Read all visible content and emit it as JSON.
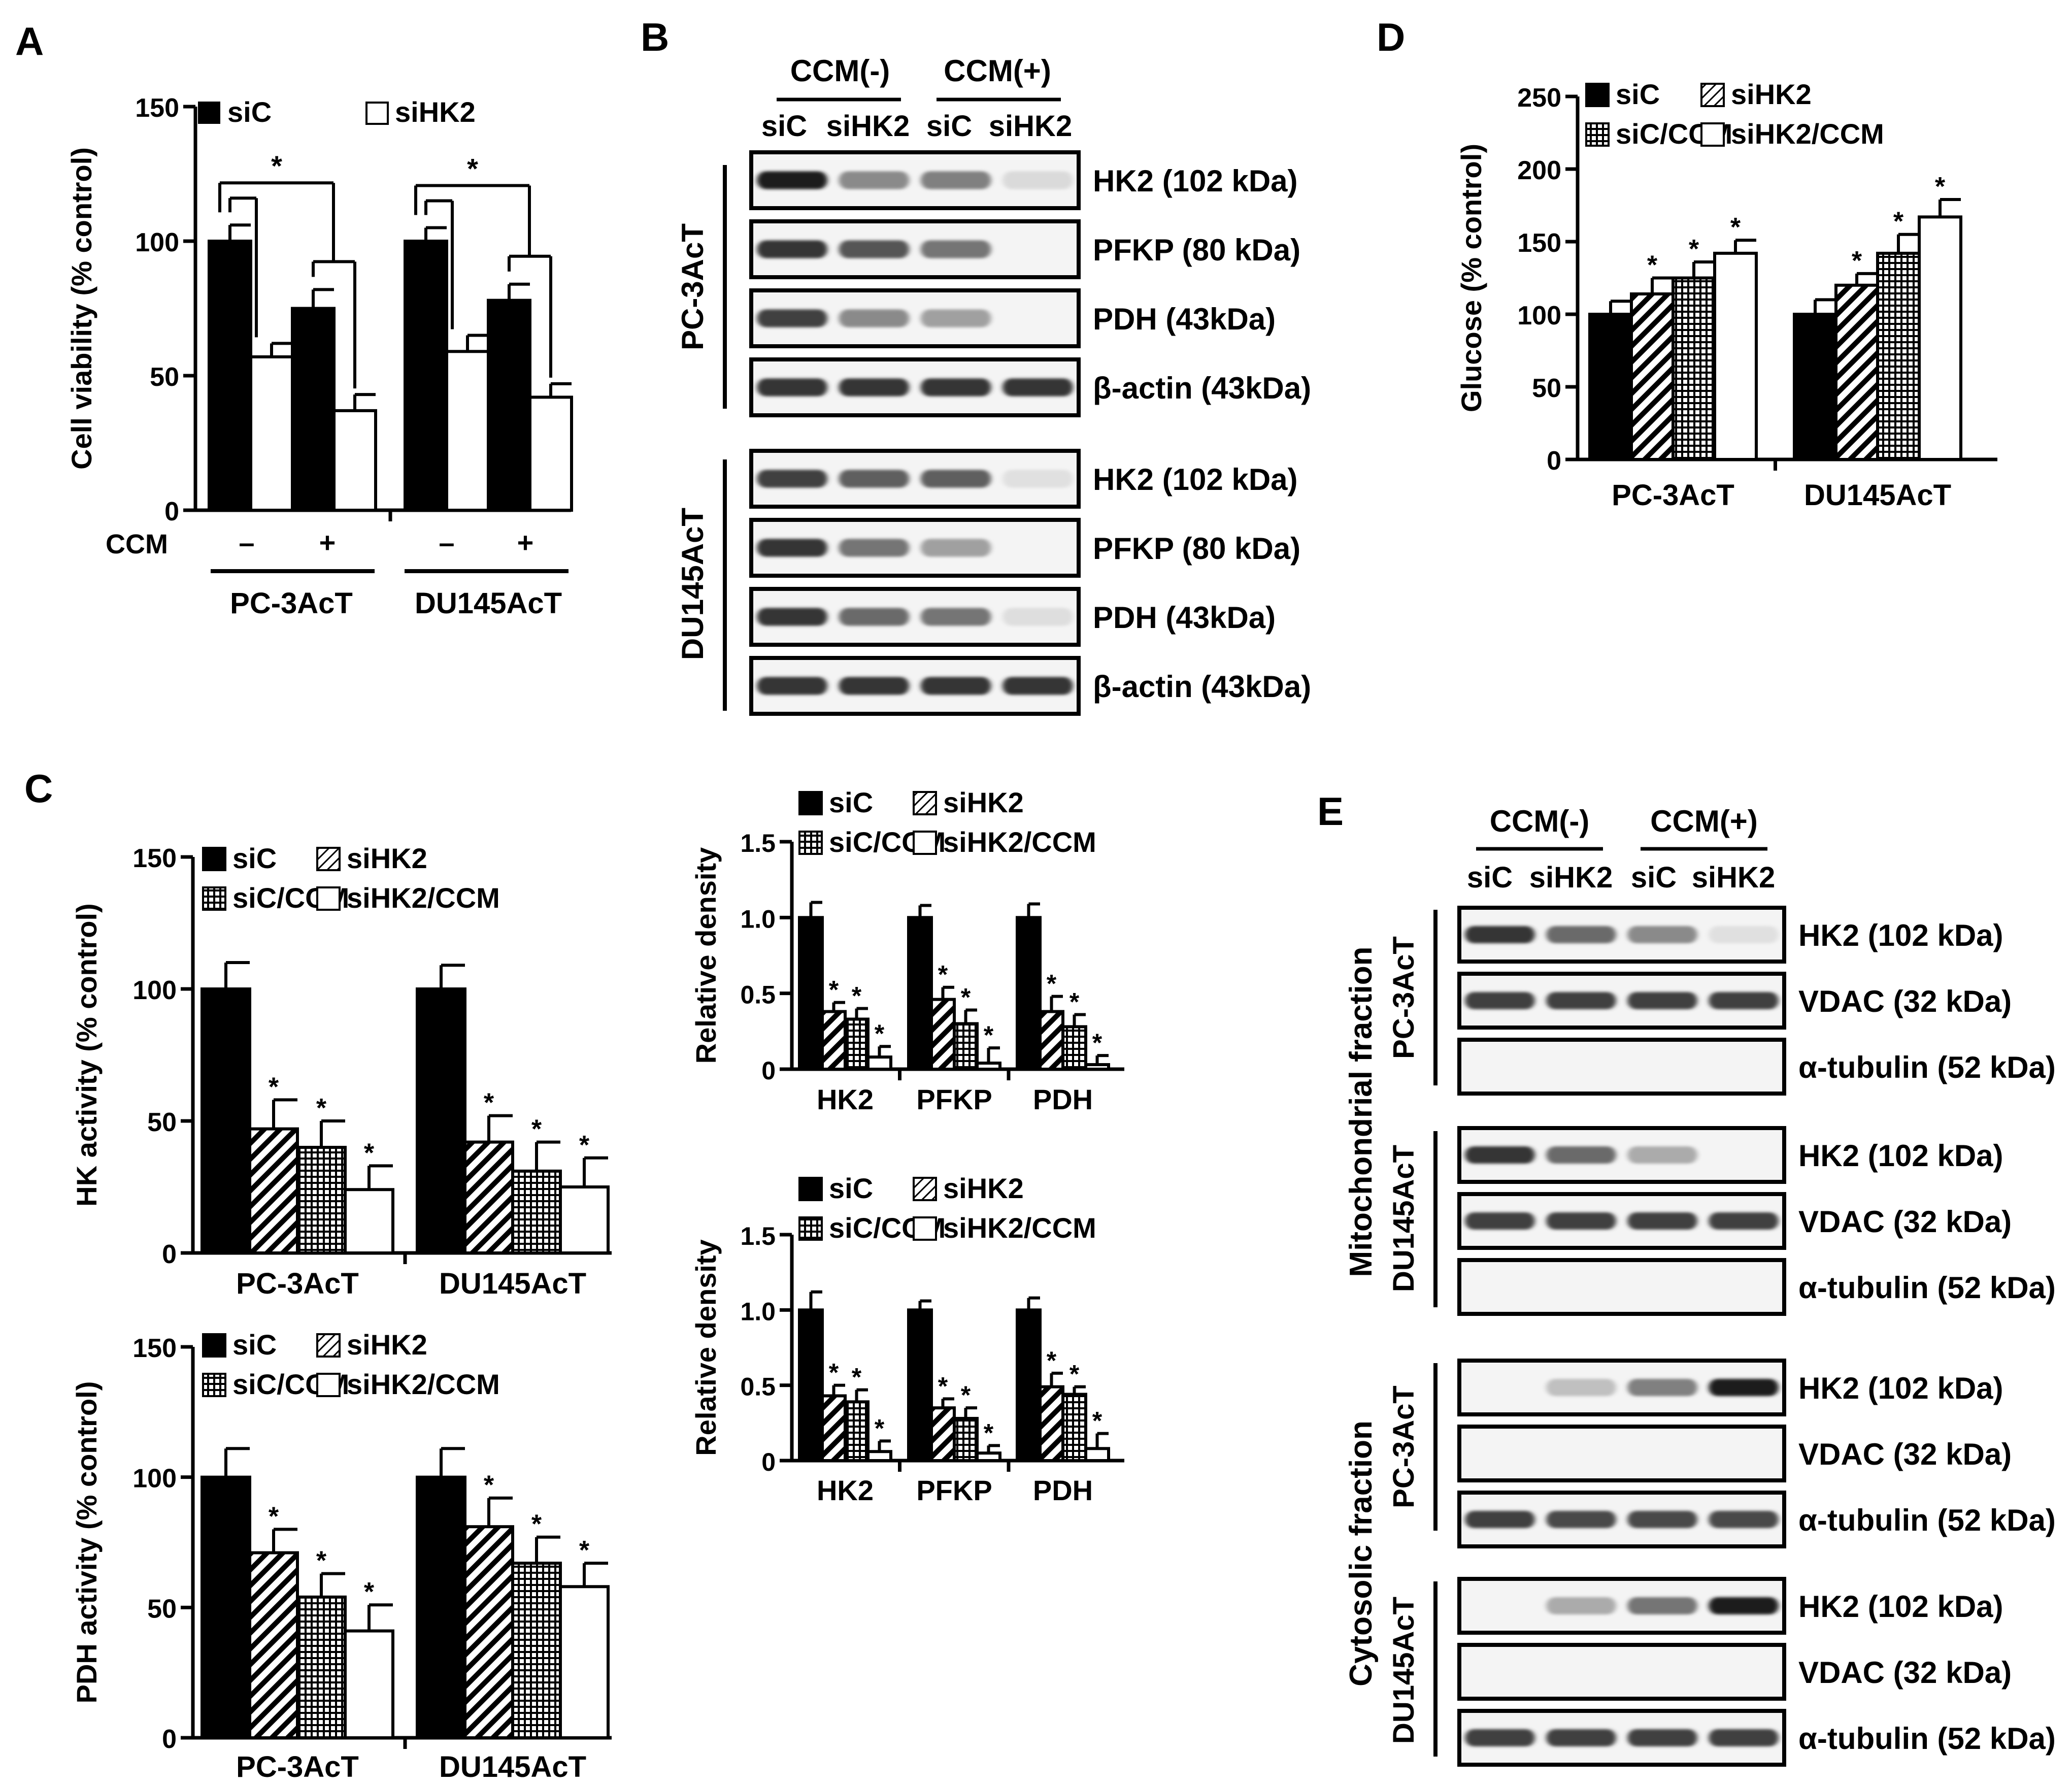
{
  "panel_labels": {
    "a": "A",
    "b": "B",
    "c": "C",
    "d": "D",
    "e": "E"
  },
  "groups": [
    "PC-3AcT",
    "DU145AcT"
  ],
  "legend": {
    "sic": "siC",
    "sihk2": "siHK2",
    "sic_ccm": "siC/CCM",
    "sihk2_ccm": "siHK2/CCM"
  },
  "colors": {
    "solid": "#000000",
    "open": "#ffffff"
  },
  "icons": {
    "siC": "solid-fill",
    "siHK2": "diagonal-hatch-fill",
    "siC/CCM": "grid-fill",
    "siHK2/CCM": "open-fill"
  },
  "significance_marker": "*",
  "panel_a": {
    "ylabel": "Cell viability (% control)",
    "ccm_row_label": "CCM",
    "ccm_signs": [
      "–",
      "+",
      "–",
      "+"
    ]
  },
  "panel_b": {
    "ccm_minus": "CCM(-)",
    "ccm_plus": "CCM(+)",
    "lanes": [
      "siC",
      "siHK2",
      "siC",
      "siHK2"
    ],
    "cell_lines": [
      "PC-3AcT",
      "DU145AcT"
    ],
    "proteins": [
      "HK2 (102 kDa)",
      "PFKP (80 kDa)",
      "PDH (43kDa)",
      "β-actin (43kDa)"
    ]
  },
  "panel_e": {
    "ccm_minus": "CCM(-)",
    "ccm_plus": "CCM(+)",
    "lanes": [
      "siC",
      "siHK2",
      "siC",
      "siHK2"
    ],
    "fractions": [
      "Mitochondrial fraction",
      "Cytosolic fraction"
    ],
    "cell_lines": [
      "PC-3AcT",
      "DU145AcT"
    ],
    "proteins": [
      "HK2 (102 kDa)",
      "VDAC (32 kDa)",
      "α-tubulin (52 kDa)"
    ]
  },
  "chart_data": [
    {
      "id": "A",
      "type": "bar",
      "ylabel": "Cell viability (% control)",
      "ylim": [
        0,
        150
      ],
      "yticks": [
        "0",
        "50",
        "100",
        "150"
      ],
      "categories": [
        "PC-3AcT",
        "DU145AcT"
      ],
      "series": [
        {
          "name": "siC",
          "values": [
            100,
            100
          ],
          "errors": [
            6,
            5
          ]
        },
        {
          "name": "siHK2",
          "values": [
            57,
            59
          ],
          "errors": [
            5,
            6
          ]
        },
        {
          "name": "siC/CCM",
          "values": [
            75,
            78
          ],
          "errors": [
            7,
            6
          ]
        },
        {
          "name": "siHK2/CCM",
          "values": [
            37,
            42
          ],
          "errors": [
            6,
            5
          ]
        }
      ],
      "legend": [
        "siC",
        "siHK2"
      ],
      "bracket_marker": "*"
    },
    {
      "id": "C-HK",
      "type": "bar",
      "ylabel": "HK activity (% control)",
      "ylim": [
        0,
        150
      ],
      "yticks": [
        "0",
        "50",
        "100",
        "150"
      ],
      "categories": [
        "PC-3AcT",
        "DU145AcT"
      ],
      "series": [
        {
          "name": "siC",
          "values": [
            100,
            100
          ],
          "errors": [
            10,
            9
          ]
        },
        {
          "name": "siHK2",
          "values": [
            47,
            42
          ],
          "errors": [
            11,
            10
          ]
        },
        {
          "name": "siC/CCM",
          "values": [
            40,
            31
          ],
          "errors": [
            10,
            11
          ]
        },
        {
          "name": "siHK2/CCM",
          "values": [
            24,
            25
          ],
          "errors": [
            9,
            11
          ]
        }
      ],
      "stars": [
        false,
        true,
        true,
        true
      ]
    },
    {
      "id": "C-PDH",
      "type": "bar",
      "ylabel": "PDH activity (% control)",
      "ylim": [
        0,
        150
      ],
      "yticks": [
        "0",
        "50",
        "100",
        "150"
      ],
      "categories": [
        "PC-3AcT",
        "DU145AcT"
      ],
      "series": [
        {
          "name": "siC",
          "values": [
            100,
            100
          ],
          "errors": [
            11,
            11
          ]
        },
        {
          "name": "siHK2",
          "values": [
            71,
            81
          ],
          "errors": [
            9,
            11
          ]
        },
        {
          "name": "siC/CCM",
          "values": [
            54,
            67
          ],
          "errors": [
            9,
            10
          ]
        },
        {
          "name": "siHK2/CCM",
          "values": [
            41,
            58
          ],
          "errors": [
            10,
            9
          ]
        }
      ],
      "stars": [
        false,
        true,
        true,
        true
      ]
    },
    {
      "id": "C-density-PC3",
      "type": "bar",
      "ylabel": "Relative density",
      "ylim": [
        0,
        1.5
      ],
      "yticks": [
        "0",
        "0.5",
        "1.0",
        "1.5"
      ],
      "categories": [
        "HK2",
        "PFKP",
        "PDH"
      ],
      "series": [
        {
          "name": "siC",
          "values": [
            1.0,
            1.0,
            1.0
          ],
          "errors": [
            0.1,
            0.08,
            0.09
          ]
        },
        {
          "name": "siHK2",
          "values": [
            0.38,
            0.46,
            0.38
          ],
          "errors": [
            0.06,
            0.08,
            0.1
          ]
        },
        {
          "name": "siC/CCM",
          "values": [
            0.33,
            0.3,
            0.28
          ],
          "errors": [
            0.07,
            0.09,
            0.08
          ]
        },
        {
          "name": "siHK2/CCM",
          "values": [
            0.08,
            0.04,
            0.03
          ],
          "errors": [
            0.07,
            0.1,
            0.06
          ]
        }
      ],
      "stars": [
        false,
        true,
        true,
        true
      ]
    },
    {
      "id": "C-density-DU145",
      "type": "bar",
      "ylabel": "Relative density",
      "ylim": [
        0,
        1.5
      ],
      "yticks": [
        "0",
        "0.5",
        "1.0",
        "1.5"
      ],
      "categories": [
        "HK2",
        "PFKP",
        "PDH"
      ],
      "series": [
        {
          "name": "siC",
          "values": [
            1.0,
            1.0,
            1.0
          ],
          "errors": [
            0.12,
            0.06,
            0.08
          ]
        },
        {
          "name": "siHK2",
          "values": [
            0.43,
            0.35,
            0.49
          ],
          "errors": [
            0.07,
            0.06,
            0.09
          ]
        },
        {
          "name": "siC/CCM",
          "values": [
            0.39,
            0.28,
            0.44
          ],
          "errors": [
            0.08,
            0.07,
            0.05
          ]
        },
        {
          "name": "siHK2/CCM",
          "values": [
            0.06,
            0.05,
            0.08
          ],
          "errors": [
            0.07,
            0.05,
            0.1
          ]
        }
      ],
      "stars": [
        false,
        true,
        true,
        true
      ]
    },
    {
      "id": "D",
      "type": "bar",
      "ylabel": "Glucose (% control)",
      "ylim": [
        0,
        250
      ],
      "yticks": [
        "0",
        "50",
        "100",
        "150",
        "200",
        "250"
      ],
      "categories": [
        "PC-3AcT",
        "DU145AcT"
      ],
      "series": [
        {
          "name": "siC",
          "values": [
            100,
            100
          ],
          "errors": [
            9,
            10
          ]
        },
        {
          "name": "siHK2",
          "values": [
            114,
            120
          ],
          "errors": [
            11,
            8
          ]
        },
        {
          "name": "siC/CCM",
          "values": [
            125,
            142
          ],
          "errors": [
            11,
            13
          ]
        },
        {
          "name": "siHK2/CCM",
          "values": [
            142,
            167
          ],
          "errors": [
            9,
            12
          ]
        }
      ],
      "stars": [
        false,
        true,
        true,
        true
      ]
    }
  ],
  "blots": {
    "B": [
      [
        0.95,
        0.45,
        0.5,
        0.08
      ],
      [
        0.85,
        0.7,
        0.55,
        0.0
      ],
      [
        0.8,
        0.45,
        0.35,
        0.0
      ],
      [
        0.85,
        0.85,
        0.85,
        0.85
      ],
      [
        0.8,
        0.65,
        0.65,
        0.05
      ],
      [
        0.85,
        0.55,
        0.35,
        0.0
      ],
      [
        0.85,
        0.6,
        0.55,
        0.06
      ],
      [
        0.85,
        0.85,
        0.85,
        0.85
      ]
    ],
    "E": [
      [
        0.85,
        0.6,
        0.45,
        0.05
      ],
      [
        0.8,
        0.8,
        0.8,
        0.8
      ],
      [
        0,
        0,
        0,
        0
      ],
      [
        0.85,
        0.6,
        0.3,
        0.0
      ],
      [
        0.8,
        0.8,
        0.8,
        0.8
      ],
      [
        0,
        0,
        0,
        0
      ],
      [
        0.0,
        0.2,
        0.5,
        0.95
      ],
      [
        0,
        0,
        0,
        0
      ],
      [
        0.8,
        0.75,
        0.75,
        0.75
      ],
      [
        0.0,
        0.3,
        0.55,
        0.95
      ],
      [
        0,
        0,
        0,
        0
      ],
      [
        0.8,
        0.8,
        0.8,
        0.8
      ]
    ]
  }
}
